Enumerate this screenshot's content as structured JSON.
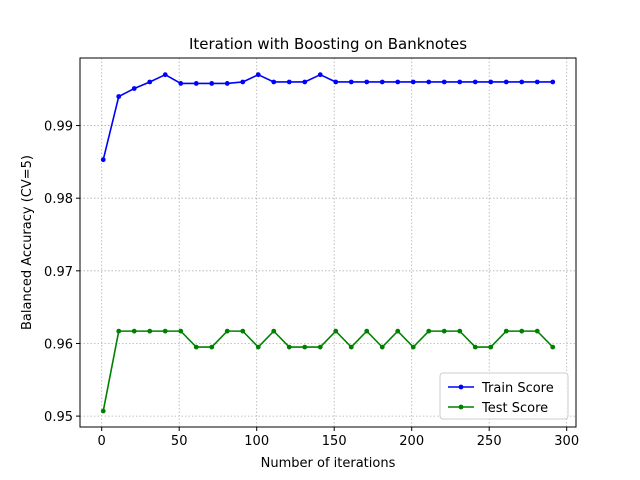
{
  "chart_data": {
    "type": "line",
    "title": "Iteration with Boosting on Banknotes",
    "xlabel": "Number of iterations",
    "ylabel": "Balanced Accuracy (CV=5)",
    "xlim": [
      -14,
      306
    ],
    "ylim": [
      0.9485,
      0.9993
    ],
    "xticks": [
      0,
      50,
      100,
      150,
      200,
      250,
      300
    ],
    "yticks": [
      0.95,
      0.96,
      0.97,
      0.98,
      0.99
    ],
    "ytick_labels": [
      "0.95",
      "0.96",
      "0.97",
      "0.98",
      "0.99"
    ],
    "grid": true,
    "legend_position": "lower-right",
    "x": [
      1,
      11,
      21,
      31,
      41,
      51,
      61,
      71,
      81,
      91,
      101,
      111,
      121,
      131,
      141,
      151,
      161,
      171,
      181,
      191,
      201,
      211,
      221,
      231,
      241,
      251,
      261,
      271,
      281,
      291
    ],
    "series": [
      {
        "name": "Train Score",
        "color": "#0000ff",
        "values": [
          0.9853,
          0.994,
          0.9951,
          0.996,
          0.997,
          0.9958,
          0.9958,
          0.9958,
          0.9958,
          0.996,
          0.997,
          0.996,
          0.996,
          0.996,
          0.997,
          0.996,
          0.996,
          0.996,
          0.996,
          0.996,
          0.996,
          0.996,
          0.996,
          0.996,
          0.996,
          0.996,
          0.996,
          0.996,
          0.996,
          0.996
        ]
      },
      {
        "name": "Test Score",
        "color": "#008000",
        "values": [
          0.9507,
          0.9617,
          0.9617,
          0.9617,
          0.9617,
          0.9617,
          0.9595,
          0.9595,
          0.9617,
          0.9617,
          0.9595,
          0.9617,
          0.9595,
          0.9595,
          0.9595,
          0.9617,
          0.9595,
          0.9617,
          0.9595,
          0.9617,
          0.9595,
          0.9617,
          0.9617,
          0.9617,
          0.9595,
          0.9595,
          0.9617,
          0.9617,
          0.9617,
          0.9595
        ]
      }
    ]
  }
}
